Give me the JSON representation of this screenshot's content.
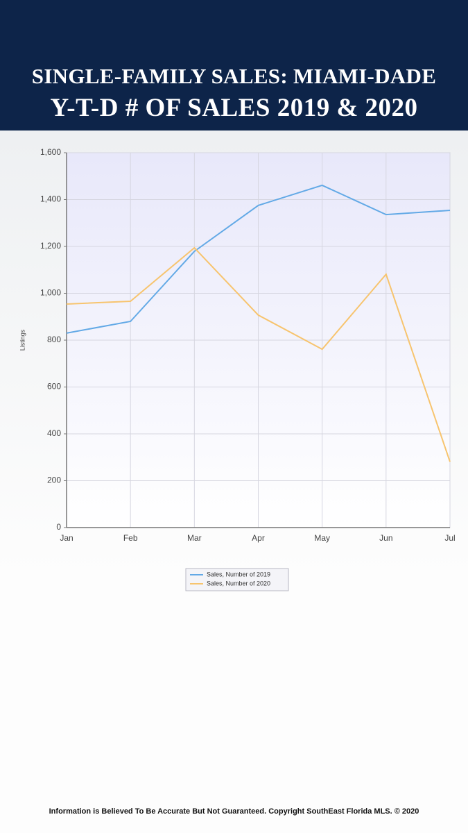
{
  "header": {
    "title_line1": "SINGLE-FAMILY SALES: MIAMI-DADE",
    "title_line2": "Y-T-D # OF SALES 2019 & 2020"
  },
  "chart_data": {
    "type": "line",
    "ylabel": "Listings",
    "categories": [
      "Jan",
      "Feb",
      "Mar",
      "Apr",
      "May",
      "Jun",
      "Jul"
    ],
    "series": [
      {
        "name": "Sales, Number of 2019",
        "color": "#62a9e6",
        "values": [
          830,
          880,
          1179,
          1375,
          1461,
          1336,
          1354
        ]
      },
      {
        "name": "Sales, Number of 2020",
        "color": "#f7c46e",
        "values": [
          954,
          966,
          1194,
          907,
          761,
          1081,
          281
        ]
      }
    ],
    "ylim": [
      0,
      1600
    ],
    "yticks": [
      0,
      200,
      400,
      600,
      800,
      {
        "value": 1000,
        "label": "1,000"
      },
      {
        "value": 1200,
        "label": "1,200"
      },
      {
        "value": 1400,
        "label": "1,400"
      },
      {
        "value": 1600,
        "label": "1,600"
      }
    ],
    "grid": true
  },
  "footer": "Information is Believed To Be Accurate But Not Guaranteed. Copyright SouthEast Florida MLS. © 2020"
}
